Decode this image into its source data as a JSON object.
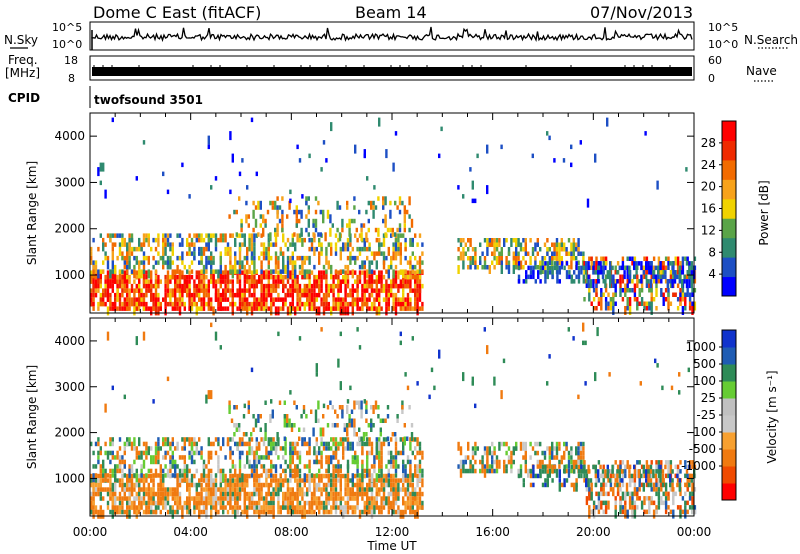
{
  "header": {
    "station": "Dome C East (fitACF)",
    "beam": "Beam 14",
    "date": "07/Nov/2013"
  },
  "aux_panels": {
    "nsky_label": "N.Sky",
    "nsearch_label": "N.Search",
    "nsky_top": "10^5",
    "nsky_bottom": "10^0",
    "freq_label_1": "Freq.",
    "freq_label_2": "[MHz]",
    "freq_top": "18",
    "freq_bottom": "8",
    "nave_label": "Nave",
    "nave_top": "60",
    "nave_bottom": "0",
    "cpid_label": "CPID",
    "cpid_value": "twofsound 3501"
  },
  "colors": {
    "power_scale": [
      "#0000ff",
      "#1d4fc4",
      "#2f8a6f",
      "#5aa448",
      "#f0d200",
      "#f7a21a",
      "#f26b00",
      "#ef2a00",
      "#ff0000"
    ],
    "velocity_scale": [
      "#ff0000",
      "#f04a00",
      "#f07a10",
      "#f7a030",
      "#c8c8c8",
      "#c0c0c0",
      "#66cc33",
      "#2e8b57",
      "#1f5cb3",
      "#1033cc"
    ]
  },
  "chart_data": [
    {
      "type": "heatmap",
      "panel": "power",
      "ylabel": "Slant Range [km]",
      "xlabel": "",
      "x_tick_labels": [
        "00:00",
        "04:00",
        "08:00",
        "12:00",
        "16:00",
        "20:00",
        "00:00"
      ],
      "xlim_hours": [
        0,
        24
      ],
      "ylim_km": [
        180,
        4500
      ],
      "y_ticks": [
        1000,
        2000,
        3000,
        4000
      ],
      "colorbar": {
        "label": "Power [dB]",
        "tick_labels": [
          "28",
          "24",
          "20",
          "16",
          "12",
          "8",
          "4"
        ],
        "range": [
          0,
          32
        ]
      }
    },
    {
      "type": "heatmap",
      "panel": "velocity",
      "ylabel": "Slant Range [km]",
      "xlabel": "Time UT",
      "x_tick_labels": [
        "00:00",
        "04:00",
        "08:00",
        "12:00",
        "16:00",
        "20:00",
        "00:00"
      ],
      "xlim_hours": [
        0,
        24
      ],
      "ylim_km": [
        180,
        4500
      ],
      "y_ticks": [
        1000,
        2000,
        3000,
        4000
      ],
      "colorbar": {
        "label": "Velocity [m s⁻¹]",
        "tick_labels": [
          "1000",
          "500",
          "100",
          "25",
          "-25",
          "-100",
          "-500",
          "-1000"
        ]
      }
    }
  ]
}
